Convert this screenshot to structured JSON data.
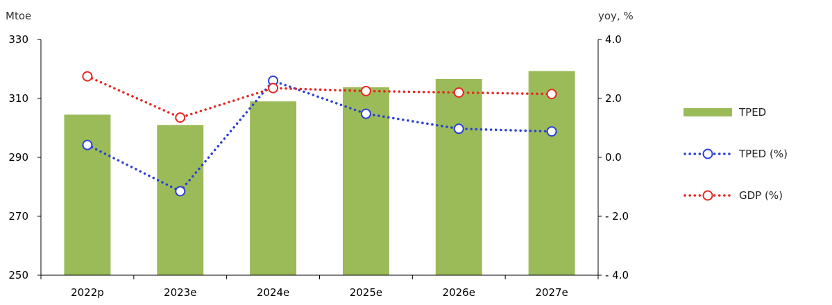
{
  "chart_data": {
    "type": "bar+line",
    "categories": [
      "2022p",
      "2023e",
      "2024e",
      "2025e",
      "2026e",
      "2027e"
    ],
    "left_axis": {
      "unit": "Mtoe",
      "ylim": [
        250,
        330
      ],
      "ticks": [
        250,
        270,
        290,
        310,
        330
      ]
    },
    "right_axis": {
      "unit": "yoy, %",
      "ylim": [
        -4.0,
        4.0
      ],
      "ticks": [
        "- 4.0",
        "- 2.0",
        "0.0",
        "2.0",
        "4.0"
      ]
    },
    "series": [
      {
        "name": "TPED",
        "kind": "bar",
        "axis": "left",
        "color": "#9BBB59",
        "values": [
          304.5,
          301,
          309,
          313.8,
          316.6,
          319.3
        ]
      },
      {
        "name": "TPED (%)",
        "kind": "line",
        "axis": "right",
        "color": "#2A3FD6",
        "style": "dotted",
        "values": [
          0.42,
          -1.15,
          2.6,
          1.48,
          0.97,
          0.88
        ]
      },
      {
        "name": "GDP (%)",
        "kind": "line",
        "axis": "right",
        "color": "#E8261F",
        "style": "dotted",
        "values": [
          2.75,
          1.35,
          2.35,
          2.25,
          2.2,
          2.15
        ]
      }
    ],
    "grid": false,
    "legend_position": "right"
  }
}
